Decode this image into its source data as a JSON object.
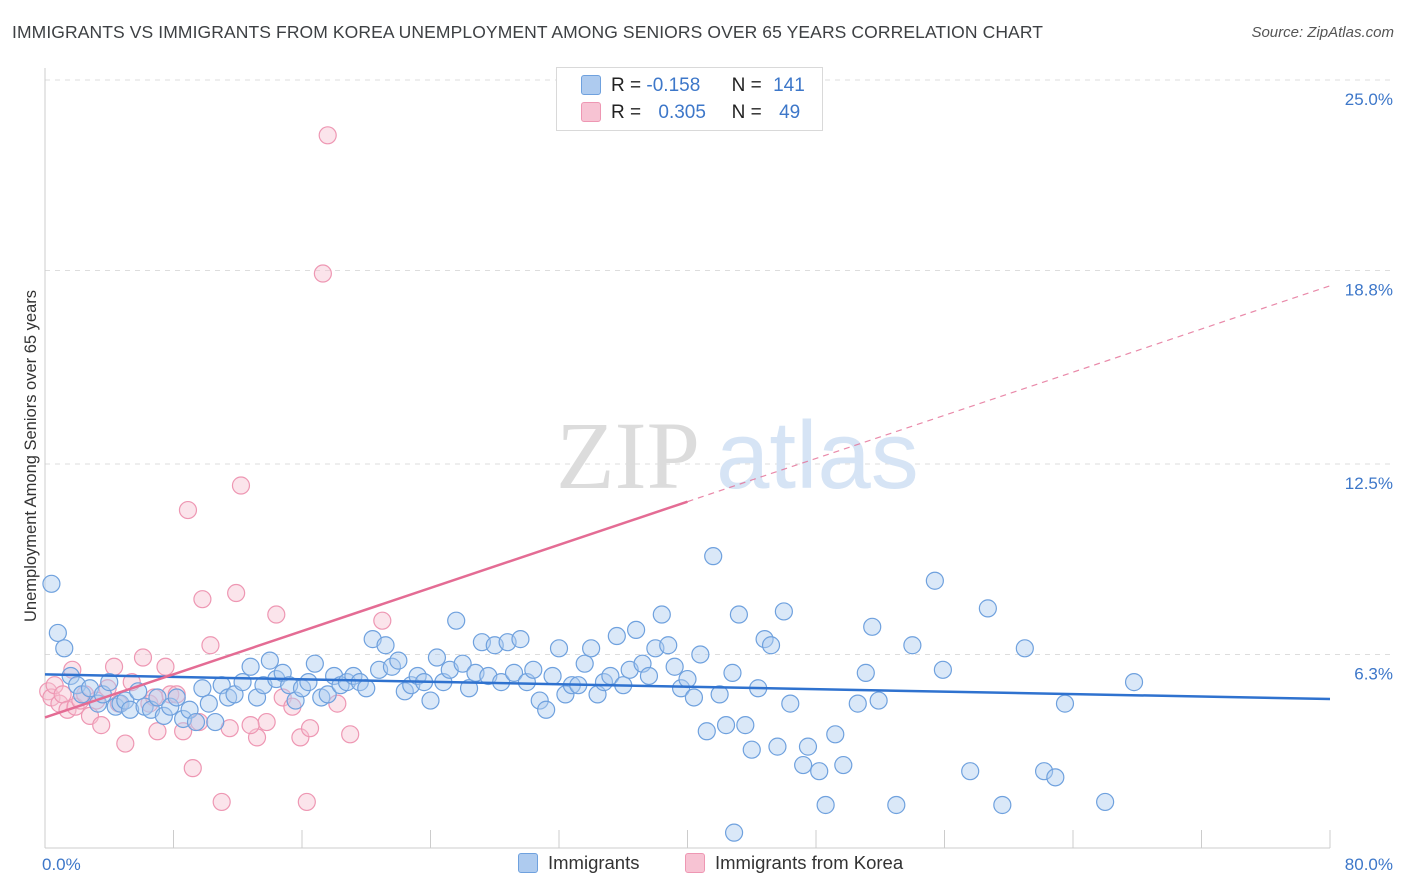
{
  "title": "IMMIGRANTS VS IMMIGRANTS FROM KOREA UNEMPLOYMENT AMONG SENIORS OVER 65 YEARS CORRELATION CHART",
  "source": "Source: ZipAtlas.com",
  "watermark": {
    "zip": "ZIP",
    "atlas": "atlas"
  },
  "legend": {
    "rows": [
      {
        "r_label": "R =",
        "r_value": "-0.158",
        "n_label": "N =",
        "n_value": "141"
      },
      {
        "r_label": "R =",
        "r_value": "0.305",
        "n_label": "N =",
        "n_value": "49"
      }
    ]
  },
  "bottom_legend": {
    "series1": "Immigrants",
    "series2": "Immigrants from Korea"
  },
  "colors": {
    "blue_fill": "#aecbef",
    "blue_stroke": "#6fa1de",
    "blue_line": "#2f72cf",
    "pink_fill": "#f7c3d3",
    "pink_stroke": "#ee97b3",
    "pink_line": "#e46c94",
    "tick_text": "#3d77c9",
    "grid": "#dddddd"
  },
  "chart_data": {
    "type": "scatter",
    "title": "IMMIGRANTS VS IMMIGRANTS FROM KOREA UNEMPLOYMENT AMONG SENIORS OVER 65 YEARS CORRELATION CHART",
    "xlabel": "",
    "ylabel": "Unemployment Among Seniors over 65 years",
    "xlim": [
      0,
      80
    ],
    "ylim": [
      0,
      25
    ],
    "x_tick_labels": [
      "0.0%",
      "80.0%"
    ],
    "y_ticks": [
      6.3,
      12.5,
      18.8,
      25.0
    ],
    "y_tick_labels": [
      "6.3%",
      "12.5%",
      "18.8%",
      "25.0%"
    ],
    "series": [
      {
        "name": "Immigrants",
        "r": -0.158,
        "n": 141,
        "trend": {
          "x0": 0,
          "y0": 5.65,
          "x1": 80,
          "y1": 4.85,
          "dashed_from": null
        },
        "points": [
          [
            0.4,
            8.6
          ],
          [
            0.8,
            7.0
          ],
          [
            1.2,
            6.5
          ],
          [
            1.6,
            5.6
          ],
          [
            2.0,
            5.3
          ],
          [
            2.3,
            5.0
          ],
          [
            2.8,
            5.2
          ],
          [
            3.3,
            4.7
          ],
          [
            3.6,
            5.0
          ],
          [
            4.0,
            5.4
          ],
          [
            4.4,
            4.6
          ],
          [
            4.7,
            4.7
          ],
          [
            5.0,
            4.8
          ],
          [
            5.3,
            4.5
          ],
          [
            5.8,
            5.1
          ],
          [
            6.2,
            4.6
          ],
          [
            6.6,
            4.5
          ],
          [
            7.0,
            4.9
          ],
          [
            7.4,
            4.3
          ],
          [
            7.8,
            4.6
          ],
          [
            8.2,
            4.9
          ],
          [
            8.6,
            4.2
          ],
          [
            9.0,
            4.5
          ],
          [
            9.4,
            4.1
          ],
          [
            9.8,
            5.2
          ],
          [
            10.2,
            4.7
          ],
          [
            10.6,
            4.1
          ],
          [
            11.0,
            5.3
          ],
          [
            11.4,
            4.9
          ],
          [
            11.8,
            5.0
          ],
          [
            12.3,
            5.4
          ],
          [
            12.8,
            5.9
          ],
          [
            13.2,
            4.9
          ],
          [
            13.6,
            5.3
          ],
          [
            14.0,
            6.1
          ],
          [
            14.4,
            5.5
          ],
          [
            14.8,
            5.7
          ],
          [
            15.2,
            5.3
          ],
          [
            15.6,
            4.8
          ],
          [
            16.0,
            5.2
          ],
          [
            16.4,
            5.4
          ],
          [
            16.8,
            6.0
          ],
          [
            17.2,
            4.9
          ],
          [
            17.6,
            5.0
          ],
          [
            18.0,
            5.6
          ],
          [
            18.4,
            5.3
          ],
          [
            18.8,
            5.4
          ],
          [
            19.2,
            5.6
          ],
          [
            19.6,
            5.4
          ],
          [
            20.0,
            5.2
          ],
          [
            20.4,
            6.8
          ],
          [
            20.8,
            5.8
          ],
          [
            21.2,
            6.6
          ],
          [
            21.6,
            5.9
          ],
          [
            22.0,
            6.1
          ],
          [
            22.4,
            5.1
          ],
          [
            22.8,
            5.3
          ],
          [
            23.2,
            5.6
          ],
          [
            23.6,
            5.4
          ],
          [
            24.0,
            4.8
          ],
          [
            24.4,
            6.2
          ],
          [
            24.8,
            5.4
          ],
          [
            25.2,
            5.8
          ],
          [
            25.6,
            7.4
          ],
          [
            26.0,
            6.0
          ],
          [
            26.4,
            5.2
          ],
          [
            26.8,
            5.7
          ],
          [
            27.2,
            6.7
          ],
          [
            27.6,
            5.6
          ],
          [
            28.0,
            6.6
          ],
          [
            28.4,
            5.4
          ],
          [
            28.8,
            6.7
          ],
          [
            29.2,
            5.7
          ],
          [
            29.6,
            6.8
          ],
          [
            30.0,
            5.4
          ],
          [
            30.4,
            5.8
          ],
          [
            30.8,
            4.8
          ],
          [
            31.2,
            4.5
          ],
          [
            31.6,
            5.6
          ],
          [
            32.0,
            6.5
          ],
          [
            32.4,
            5.0
          ],
          [
            32.8,
            5.3
          ],
          [
            33.2,
            5.3
          ],
          [
            33.6,
            6.0
          ],
          [
            34.0,
            6.5
          ],
          [
            34.4,
            5.0
          ],
          [
            34.8,
            5.4
          ],
          [
            35.2,
            5.6
          ],
          [
            35.6,
            6.9
          ],
          [
            36.0,
            5.3
          ],
          [
            36.4,
            5.8
          ],
          [
            36.8,
            7.1
          ],
          [
            37.2,
            6.0
          ],
          [
            37.6,
            5.6
          ],
          [
            38.0,
            6.5
          ],
          [
            38.4,
            7.6
          ],
          [
            38.8,
            6.6
          ],
          [
            39.2,
            5.9
          ],
          [
            39.6,
            5.2
          ],
          [
            40.0,
            5.5
          ],
          [
            40.4,
            4.9
          ],
          [
            40.8,
            6.3
          ],
          [
            41.2,
            3.8
          ],
          [
            41.6,
            9.5
          ],
          [
            42.0,
            5.0
          ],
          [
            42.4,
            4.0
          ],
          [
            42.8,
            5.7
          ],
          [
            43.2,
            7.6
          ],
          [
            43.6,
            4.0
          ],
          [
            44.0,
            3.2
          ],
          [
            44.4,
            5.2
          ],
          [
            44.8,
            6.8
          ],
          [
            45.2,
            6.6
          ],
          [
            45.6,
            3.3
          ],
          [
            46.0,
            7.7
          ],
          [
            46.4,
            4.7
          ],
          [
            47.2,
            2.7
          ],
          [
            47.5,
            3.3
          ],
          [
            48.2,
            2.5
          ],
          [
            48.6,
            1.4
          ],
          [
            49.2,
            3.7
          ],
          [
            49.7,
            2.7
          ],
          [
            50.6,
            4.7
          ],
          [
            51.1,
            5.7
          ],
          [
            51.5,
            7.2
          ],
          [
            51.9,
            4.8
          ],
          [
            53.0,
            1.4
          ],
          [
            54.0,
            6.6
          ],
          [
            55.4,
            8.7
          ],
          [
            55.9,
            5.8
          ],
          [
            57.6,
            2.5
          ],
          [
            58.7,
            7.8
          ],
          [
            59.6,
            1.4
          ],
          [
            61.0,
            6.5
          ],
          [
            62.2,
            2.5
          ],
          [
            62.9,
            2.3
          ],
          [
            63.5,
            4.7
          ],
          [
            66.0,
            1.5
          ],
          [
            42.9,
            0.5
          ],
          [
            67.8,
            5.4
          ]
        ]
      },
      {
        "name": "Immigrants from Korea",
        "r": 0.305,
        "n": 49,
        "trend": {
          "x0": 0,
          "y0": 4.25,
          "x1": 80,
          "y1": 18.3,
          "dashed_from": 40
        },
        "points": [
          [
            0.2,
            5.1
          ],
          [
            0.4,
            4.9
          ],
          [
            0.6,
            5.3
          ],
          [
            0.9,
            4.7
          ],
          [
            1.1,
            5.0
          ],
          [
            1.4,
            4.5
          ],
          [
            1.7,
            5.8
          ],
          [
            1.9,
            4.6
          ],
          [
            2.2,
            4.8
          ],
          [
            2.5,
            5.0
          ],
          [
            2.8,
            4.3
          ],
          [
            3.2,
            4.8
          ],
          [
            3.5,
            4.0
          ],
          [
            3.9,
            5.2
          ],
          [
            4.3,
            5.9
          ],
          [
            4.6,
            4.7
          ],
          [
            5.0,
            3.4
          ],
          [
            5.4,
            5.4
          ],
          [
            6.1,
            6.2
          ],
          [
            6.5,
            4.7
          ],
          [
            7.0,
            3.8
          ],
          [
            7.5,
            5.9
          ],
          [
            7.8,
            5.0
          ],
          [
            8.2,
            5.0
          ],
          [
            8.6,
            3.8
          ],
          [
            8.9,
            11.0
          ],
          [
            9.2,
            2.6
          ],
          [
            9.6,
            4.1
          ],
          [
            9.8,
            8.1
          ],
          [
            10.3,
            6.6
          ],
          [
            11.0,
            1.5
          ],
          [
            11.5,
            3.9
          ],
          [
            11.9,
            8.3
          ],
          [
            12.2,
            11.8
          ],
          [
            13.2,
            3.6
          ],
          [
            13.8,
            4.1
          ],
          [
            14.4,
            7.6
          ],
          [
            14.8,
            4.9
          ],
          [
            15.4,
            4.6
          ],
          [
            15.9,
            3.6
          ],
          [
            16.3,
            1.5
          ],
          [
            16.5,
            3.9
          ],
          [
            17.3,
            18.7
          ],
          [
            17.6,
            23.2
          ],
          [
            18.2,
            4.7
          ],
          [
            19.0,
            3.7
          ],
          [
            21.0,
            7.4
          ],
          [
            12.8,
            4.0
          ],
          [
            6.8,
            4.9
          ]
        ]
      }
    ]
  }
}
